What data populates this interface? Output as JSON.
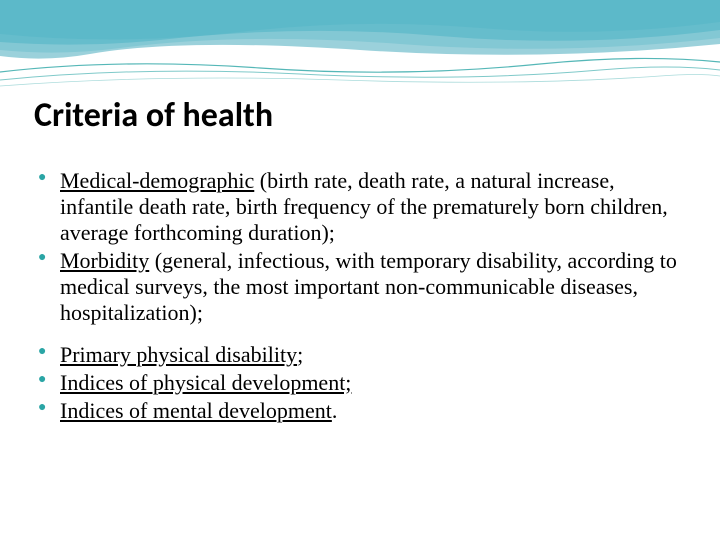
{
  "title": {
    "text": "Criteria of health",
    "fontsize": 34,
    "color": "#000000"
  },
  "bullets": [
    {
      "term": "Medical-demographic",
      "rest": " (birth rate, death rate, a natural increase, infantile death rate, birth frequency of the prematurely born children, average forthcoming duration);"
    },
    {
      "term": "Morbidity",
      "rest": " (general, infectious, with temporary disability, according to medical surveys, the most important non-communicable diseases, hospitalization);"
    },
    {
      "term": "Primary physical disability",
      "rest": ";"
    },
    {
      "term": "Indices of physical development;",
      "rest": ""
    },
    {
      "term": "Indices of mental development",
      "rest": "."
    }
  ],
  "body_fontsize": 22,
  "bullet_color": "#2aa5a5",
  "wave": {
    "colors": [
      "#7fd4e0",
      "#3fb5c9",
      "#2298b0",
      "#a8dde6"
    ],
    "line_color": "#2aa5a5"
  },
  "background_color": "#ffffff"
}
